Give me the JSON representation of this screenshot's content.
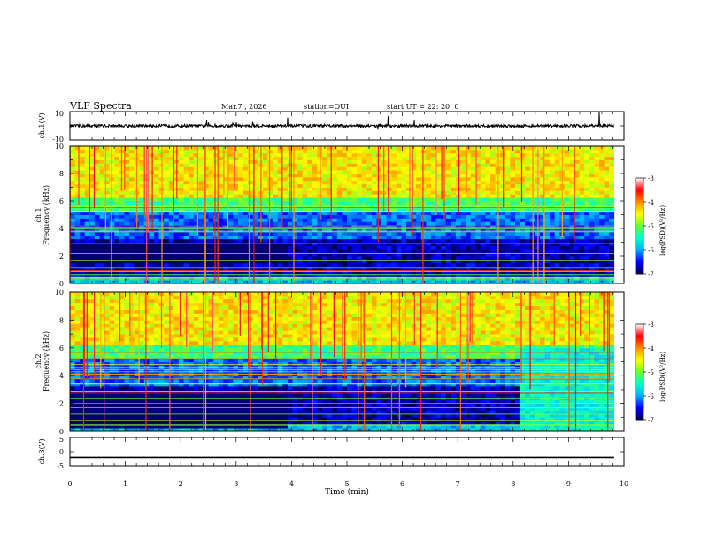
{
  "header": {
    "title": "VLF Spectra",
    "date": "Mar.7 , 2026",
    "station": "station=OUI",
    "start": "start UT =  22: 20: 0"
  },
  "chart_data": [
    {
      "type": "line",
      "name": "ch1-waveform",
      "ylabel": "ch.1(V)",
      "ylim": [
        -10,
        10
      ],
      "yticks": [
        "10",
        "-10"
      ],
      "xlim": [
        0,
        10
      ],
      "data_end_min": 9.82,
      "baseline": 0,
      "typical_amplitude": 2
    },
    {
      "type": "heatmap",
      "name": "ch1-spectrogram",
      "ylabel_top": "ch.1",
      "ylabel": "Frequency (kHz)",
      "ylim": [
        0,
        10
      ],
      "yticks": [
        "0",
        "2",
        "4",
        "6",
        "8",
        "10"
      ],
      "xlim": [
        0,
        10
      ],
      "data_end_min": 9.82,
      "colorbar": {
        "label": "log(PSD)(V²/Hz)",
        "range": [
          -7,
          -3
        ],
        "ticks": [
          "-3",
          "-4",
          "-5",
          "-6",
          "-7"
        ],
        "colors": [
          "#00004a",
          "#0000ff",
          "#00aaff",
          "#00ffcc",
          "#66ff33",
          "#ffff00",
          "#ff8800",
          "#ff0000",
          "#ffffff"
        ]
      }
    },
    {
      "type": "heatmap",
      "name": "ch2-spectrogram",
      "ylabel_top": "ch.2",
      "ylabel": "Frequency (kHz)",
      "ylim": [
        0,
        10
      ],
      "yticks": [
        "0",
        "2",
        "4",
        "6",
        "8",
        "10"
      ],
      "xlim": [
        0,
        10
      ],
      "data_end_min": 9.82,
      "colorbar": {
        "label": "log(PSD)(V²/Hz)",
        "range": [
          -7,
          -3
        ],
        "ticks": [
          "-3",
          "-4",
          "-5",
          "-6",
          "-7"
        ],
        "colors": [
          "#00004a",
          "#0000ff",
          "#00aaff",
          "#00ffcc",
          "#66ff33",
          "#ffff00",
          "#ff8800",
          "#ff0000",
          "#ffffff"
        ]
      }
    },
    {
      "type": "line",
      "name": "ch3-waveform",
      "ylabel": "ch.3(V)",
      "ylim": [
        -5,
        5
      ],
      "yticks": [
        "5",
        "0",
        "-5"
      ],
      "xlim": [
        0,
        10
      ],
      "data_end_min": 9.82,
      "baseline": -2
    }
  ],
  "xaxis": {
    "label": "Time (min)",
    "ticks": [
      "0",
      "1",
      "2",
      "3",
      "4",
      "5",
      "6",
      "7",
      "8",
      "9",
      "10"
    ]
  }
}
